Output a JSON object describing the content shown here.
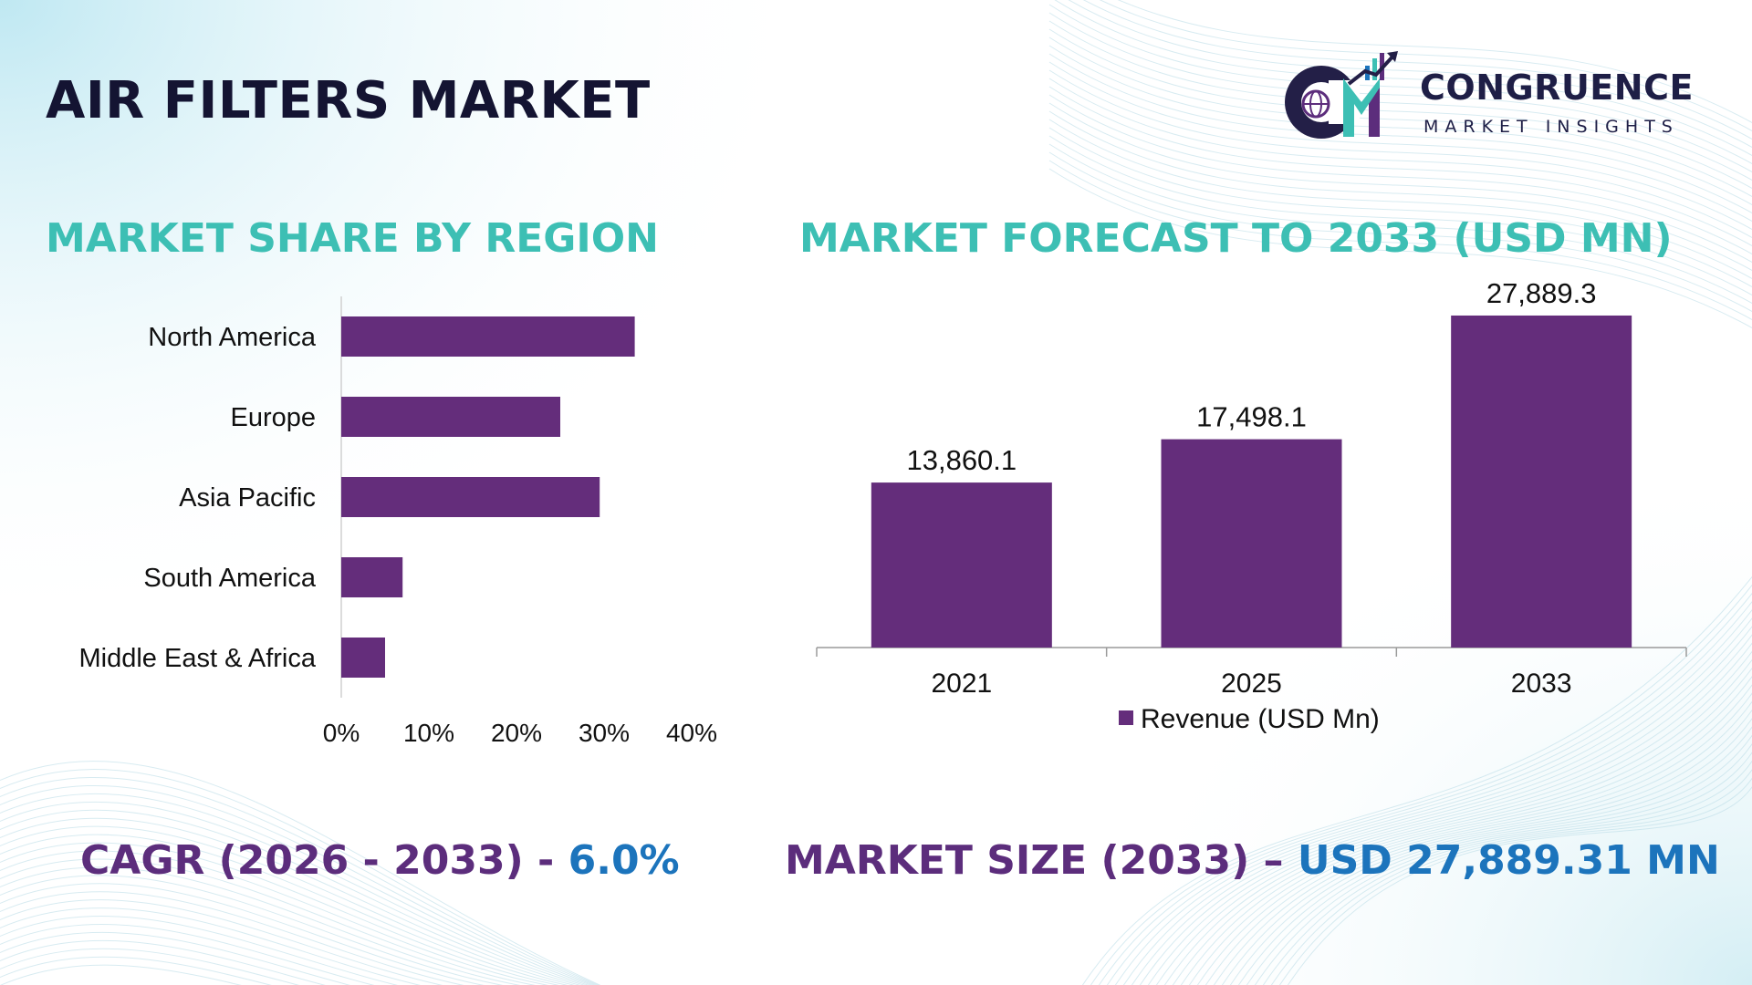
{
  "header": {
    "title": "AIR FILTERS MARKET",
    "logo_word": "CONGRUENCE",
    "logo_sub": "MARKET INSIGHTS"
  },
  "sections": {
    "left_title": "MARKET SHARE BY REGION",
    "right_title": "MARKET FORECAST TO 2033 (USD MN)"
  },
  "footer": {
    "cagr_label": "CAGR (2026 - 2033) - ",
    "cagr_value": "6.0%",
    "size_label": "MARKET SIZE (2033) – ",
    "size_value": "USD 27,889.31 MN"
  },
  "colors": {
    "bar": "#642d7b",
    "accent_teal": "#3dbfb4",
    "accent_purple": "#5c2d7c",
    "accent_blue": "#1c74bc"
  },
  "chart_data": [
    {
      "type": "bar",
      "orientation": "horizontal",
      "categories": [
        "North America",
        "Europe",
        "Asia Pacific",
        "South America",
        "Middle East & Africa"
      ],
      "values": [
        33.5,
        25,
        29.5,
        7,
        5
      ],
      "xlim": [
        0,
        40
      ],
      "xticks": [
        "0%",
        "10%",
        "20%",
        "30%",
        "40%"
      ],
      "grid": false
    },
    {
      "type": "bar",
      "categories": [
        "2021",
        "2025",
        "2033"
      ],
      "values": [
        13860.1,
        17498.1,
        27889.3
      ],
      "value_labels": [
        "13,860.1",
        "17,498.1",
        "27,889.3"
      ],
      "series": [
        {
          "name": "Revenue (USD Mn)",
          "values": [
            13860.1,
            17498.1,
            27889.3
          ]
        }
      ],
      "ylim": [
        0,
        28500
      ],
      "legend": "bottom",
      "grid": false
    }
  ]
}
